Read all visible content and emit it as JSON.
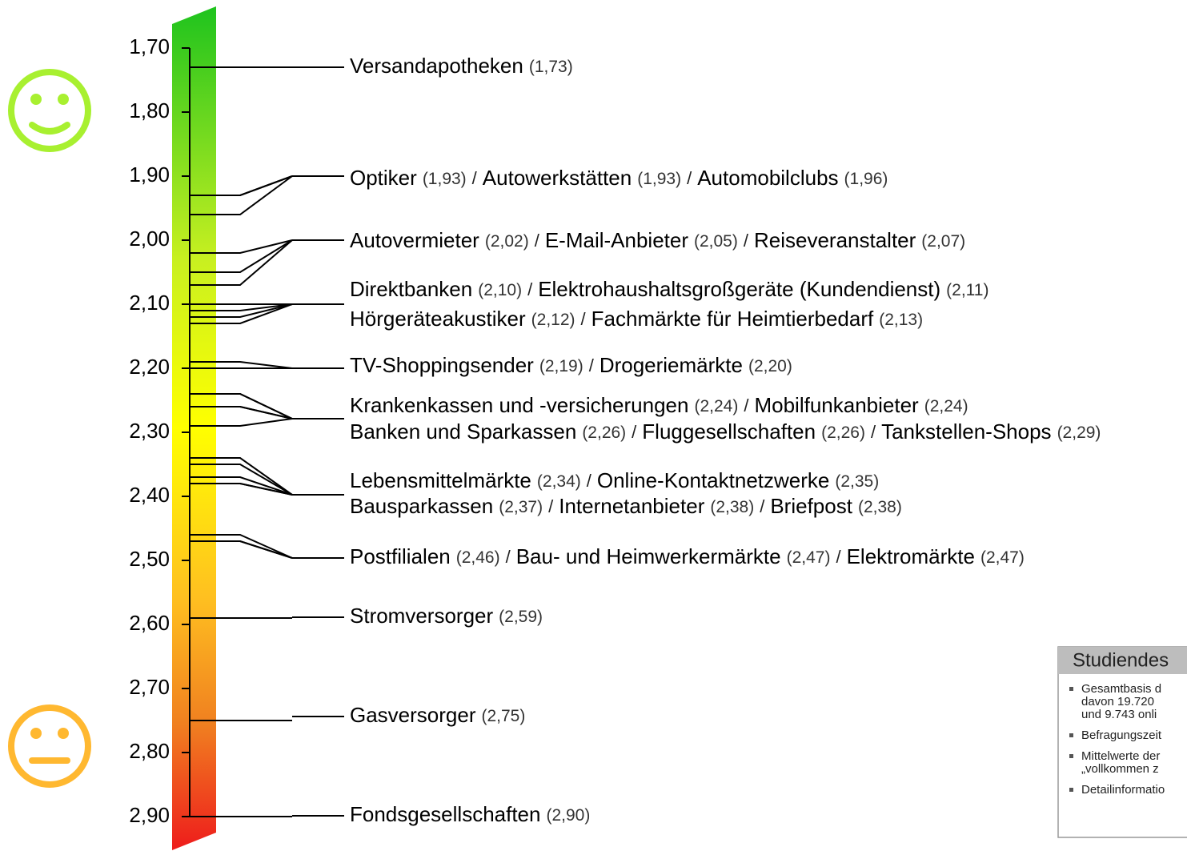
{
  "chart_data": {
    "type": "scale",
    "ylim": [
      1.64,
      2.95
    ],
    "yticks": [
      {
        "value": 1.7,
        "label": "1,70"
      },
      {
        "value": 1.8,
        "label": "1,80"
      },
      {
        "value": 1.9,
        "label": "1,90"
      },
      {
        "value": 2.0,
        "label": "2,00"
      },
      {
        "value": 2.1,
        "label": "2,10"
      },
      {
        "value": 2.2,
        "label": "2,20"
      },
      {
        "value": 2.3,
        "label": "2,30"
      },
      {
        "value": 2.4,
        "label": "2,40"
      },
      {
        "value": 2.5,
        "label": "2,50"
      },
      {
        "value": 2.6,
        "label": "2,60"
      },
      {
        "value": 2.7,
        "label": "2,70"
      },
      {
        "value": 2.8,
        "label": "2,80"
      },
      {
        "value": 2.9,
        "label": "2,90"
      }
    ],
    "separator": "/",
    "groups": [
      {
        "lines": [
          [
            {
              "name": "Versandapotheken",
              "value": 1.73,
              "value_label": "(1,73)"
            }
          ]
        ]
      },
      {
        "lines": [
          [
            {
              "name": "Optiker",
              "value": 1.93,
              "value_label": "(1,93)"
            },
            {
              "name": "Autowerkstätten",
              "value": 1.93,
              "value_label": "(1,93)"
            },
            {
              "name": "Automobilclubs",
              "value": 1.96,
              "value_label": "(1,96)"
            }
          ]
        ]
      },
      {
        "lines": [
          [
            {
              "name": "Autovermieter",
              "value": 2.02,
              "value_label": "(2,02)"
            },
            {
              "name": "E-Mail-Anbieter",
              "value": 2.05,
              "value_label": "(2,05)"
            },
            {
              "name": "Reiseveranstalter",
              "value": 2.07,
              "value_label": "(2,07)"
            }
          ]
        ]
      },
      {
        "lines": [
          [
            {
              "name": "Direktbanken",
              "value": 2.1,
              "value_label": "(2,10)"
            },
            {
              "name": "Elektrohaushaltsgroßgeräte (Kundendienst)",
              "value": 2.11,
              "value_label": "(2,11)"
            }
          ],
          [
            {
              "name": "Hörgeräteakustiker",
              "value": 2.12,
              "value_label": "(2,12)"
            },
            {
              "name": "Fachmärkte für Heimtierbedarf",
              "value": 2.13,
              "value_label": "(2,13)"
            }
          ]
        ]
      },
      {
        "lines": [
          [
            {
              "name": "TV-Shoppingsender",
              "value": 2.19,
              "value_label": "(2,19)"
            },
            {
              "name": "Drogeriemärkte",
              "value": 2.2,
              "value_label": "(2,20)"
            }
          ]
        ]
      },
      {
        "lines": [
          [
            {
              "name": "Krankenkassen und -versicherungen",
              "value": 2.24,
              "value_label": "(2,24)"
            },
            {
              "name": "Mobilfunkanbieter",
              "value": 2.24,
              "value_label": "(2,24)"
            }
          ],
          [
            {
              "name": "Banken und Sparkassen",
              "value": 2.26,
              "value_label": "(2,26)"
            },
            {
              "name": "Fluggesellschaften",
              "value": 2.26,
              "value_label": "(2,26)"
            },
            {
              "name": "Tankstellen-Shops",
              "value": 2.29,
              "value_label": "(2,29)"
            }
          ]
        ]
      },
      {
        "lines": [
          [
            {
              "name": "Lebensmittelmärkte",
              "value": 2.34,
              "value_label": "(2,34)"
            },
            {
              "name": "Online-Kontaktnetzwerke",
              "value": 2.35,
              "value_label": "(2,35)"
            }
          ],
          [
            {
              "name": "Bausparkassen",
              "value": 2.37,
              "value_label": "(2,37)"
            },
            {
              "name": "Internetanbieter",
              "value": 2.38,
              "value_label": "(2,38)"
            },
            {
              "name": "Briefpost",
              "value": 2.38,
              "value_label": "(2,38)"
            }
          ]
        ]
      },
      {
        "lines": [
          [
            {
              "name": "Postfilialen",
              "value": 2.46,
              "value_label": "(2,46)"
            },
            {
              "name": "Bau- und Heimwerkermärkte",
              "value": 2.47,
              "value_label": "(2,47)"
            },
            {
              "name": "Elektromärkte",
              "value": 2.47,
              "value_label": "(2,47)"
            }
          ]
        ]
      },
      {
        "lines": [
          [
            {
              "name": "Stromversorger",
              "value": 2.59,
              "value_label": "(2,59)"
            }
          ]
        ]
      },
      {
        "lines": [
          [
            {
              "name": "Gasversorger",
              "value": 2.75,
              "value_label": "(2,75)"
            }
          ]
        ]
      },
      {
        "lines": [
          [
            {
              "name": "Fondsgesellschaften",
              "value": 2.9,
              "value_label": "(2,90)"
            }
          ]
        ]
      }
    ]
  },
  "study_box": {
    "title": "Studiendes",
    "bullets": [
      [
        "Gesamtbasis d",
        "davon 19.720",
        "und 9.743 onli"
      ],
      [
        "Befragungszeit"
      ],
      [
        "Mittelwerte der",
        "„vollkommen z"
      ],
      [
        "Detailinformatio"
      ]
    ]
  }
}
